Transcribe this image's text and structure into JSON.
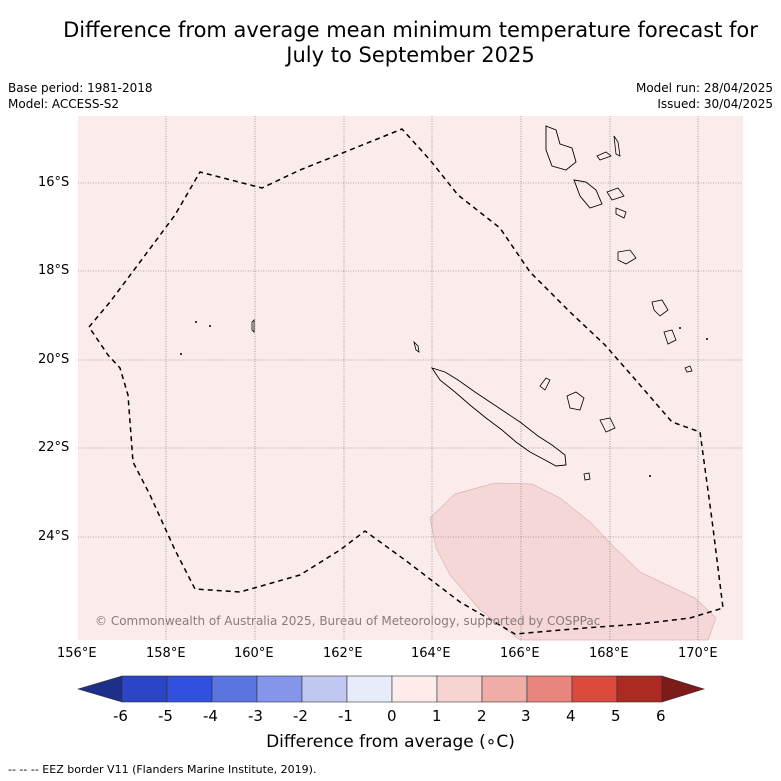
{
  "title_line1": "Difference from average mean minimum temperature forecast for",
  "title_line2": "July to September 2025",
  "meta_left": [
    "Base period: 1981-2018",
    "Model: ACCESS-S2"
  ],
  "meta_right": [
    "Model run: 28/04/2025",
    "Issued: 30/04/2025"
  ],
  "lat_labels": [
    "16°S",
    "18°S",
    "20°S",
    "22°S",
    "24°S"
  ],
  "lon_labels": [
    "156°E",
    "158°E",
    "160°E",
    "162°E",
    "164°E",
    "166°E",
    "168°E",
    "170°E"
  ],
  "copyright": "© Commonwealth of Australia 2025, Bureau of Meteorology, supported by COSPPac",
  "colorbar": {
    "ticks": [
      "-6",
      "-5",
      "-4",
      "-3",
      "-2",
      "-1",
      "0",
      "1",
      "2",
      "3",
      "4",
      "5",
      "6"
    ],
    "title": "Difference from average (∘C)",
    "colors": [
      "#1e2f8a",
      "#2a45c8",
      "#3050e0",
      "#5a74e0",
      "#8596ea",
      "#c0c8f2",
      "#e8ecfa",
      "#fdecea",
      "#f6d4d2",
      "#f0aca6",
      "#e8857c",
      "#dc4a3e",
      "#ad2a22",
      "#7c1c1a"
    ],
    "map_background": "#fbeceb",
    "warm_area": "#f4d7d6"
  },
  "footnote": "--  --  -- EEZ border V11 (Flanders Marine Institute, 2019)."
}
